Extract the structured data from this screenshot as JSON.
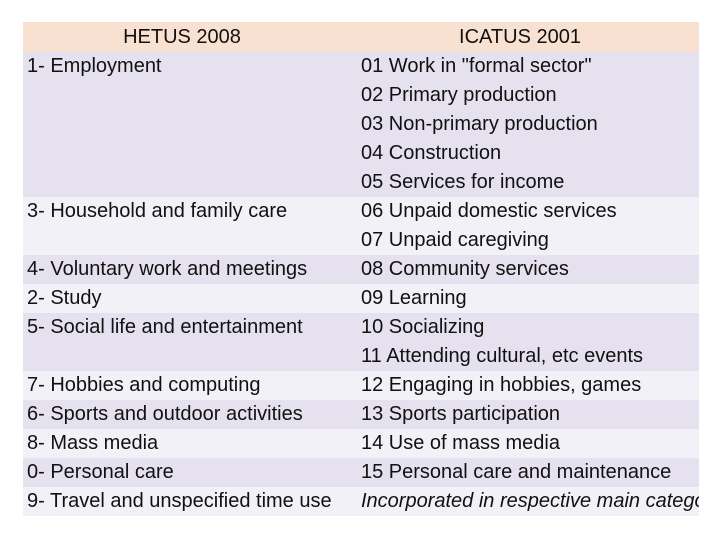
{
  "header": {
    "hetus": "HETUS 2008",
    "icatus": "ICATUS 2001"
  },
  "groups": [
    {
      "hetus": "1- Employment",
      "icatus": [
        "01 Work in \"formal sector\"",
        "02 Primary production",
        "03 Non-primary production",
        "04 Construction",
        "05 Services for income"
      ],
      "band": "a"
    },
    {
      "hetus": "3- Household and family care",
      "icatus": [
        "06 Unpaid domestic services",
        "07 Unpaid caregiving"
      ],
      "band": "b"
    },
    {
      "hetus": "4- Voluntary work and meetings",
      "icatus": [
        "08 Community services"
      ],
      "band": "a"
    },
    {
      "hetus": "2- Study",
      "icatus": [
        "09 Learning"
      ],
      "band": "b"
    },
    {
      "hetus": "5- Social life and entertainment",
      "icatus": [
        "10 Socializing",
        "11 Attending cultural, etc events"
      ],
      "band": "a"
    },
    {
      "hetus": "7- Hobbies and computing",
      "icatus": [
        "12 Engaging in hobbies, games"
      ],
      "band": "b"
    },
    {
      "hetus": "6- Sports and outdoor activities",
      "icatus": [
        "13 Sports participation"
      ],
      "band": "a"
    },
    {
      "hetus": "8- Mass media",
      "icatus": [
        "14 Use of mass media"
      ],
      "band": "b"
    },
    {
      "hetus": "0- Personal care",
      "icatus": [
        "15 Personal care and maintenance"
      ],
      "band": "a"
    },
    {
      "hetus": "9- Travel and unspecified time use",
      "icatus": [
        "Incorporated in respective main categories"
      ],
      "band": "b",
      "italic": true
    }
  ]
}
